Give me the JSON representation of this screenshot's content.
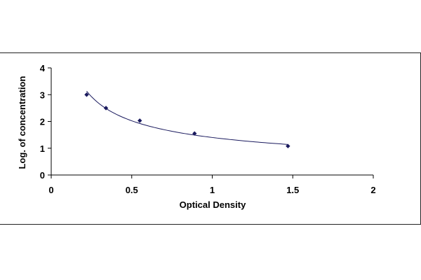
{
  "chart_data": {
    "type": "scatter",
    "title": "",
    "xlabel": "Optical Density",
    "ylabel": "Log. of concentration",
    "xlim": [
      0,
      2
    ],
    "ylim": [
      0,
      4
    ],
    "x_ticks": [
      0,
      0.5,
      1,
      1.5,
      2
    ],
    "x_tick_labels": [
      "0",
      "0.5",
      "1",
      "1.5",
      "2"
    ],
    "y_ticks": [
      0,
      1,
      2,
      3,
      4
    ],
    "y_tick_labels": [
      "0",
      "1",
      "2",
      "3",
      "4"
    ],
    "grid": false,
    "legend": "none",
    "trendline": "power",
    "colors": {
      "marker": "#1a1a5e",
      "line": "#1a1a5e",
      "axis": "#000000"
    },
    "series": [
      {
        "x": [
          0.22,
          0.34,
          0.55,
          0.89,
          1.47
        ],
        "y": [
          3.0,
          2.5,
          2.03,
          1.55,
          1.08
        ]
      }
    ]
  }
}
